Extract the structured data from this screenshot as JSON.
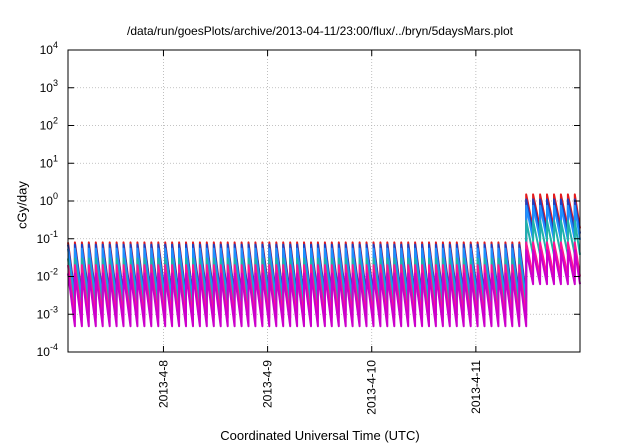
{
  "chart_data": {
    "type": "line",
    "title": "/data/run/goesPlots/archive/2013-04-11/23:00/flux/../bryn/5daysMars.plot",
    "xlabel": "Coordinated Universal Time (UTC)",
    "ylabel": "cGy/day",
    "y_scale": "log",
    "ylim": [
      0.0001,
      10000
    ],
    "xlim": [
      "2013-04-07 02:00",
      "2013-04-12 00:00"
    ],
    "x_ticks": [
      "2013-4-8",
      "2013-4-9",
      "2013-4-10",
      "2013-4-11"
    ],
    "y_ticks": [
      {
        "base": "10",
        "exp": "-4"
      },
      {
        "base": "10",
        "exp": "-3"
      },
      {
        "base": "10",
        "exp": "-2"
      },
      {
        "base": "10",
        "exp": "-1"
      },
      {
        "base": "10",
        "exp": "0"
      },
      {
        "base": "10",
        "exp": "1"
      },
      {
        "base": "10",
        "exp": "2"
      },
      {
        "base": "10",
        "exp": "3"
      },
      {
        "base": "10",
        "exp": "4"
      }
    ],
    "grid": true,
    "pattern": {
      "period_hours": 1.6,
      "start": "2013-04-07 02:00",
      "step_change": "2013-04-11 10:30",
      "peak_ratio_before": 25,
      "peak_ratio_after": 8
    },
    "series": [
      {
        "color": "#e41a1c",
        "peak_before": 0.08,
        "peak_after": 1.5
      },
      {
        "color": "#1f3fbf",
        "peak_before": 0.07,
        "peak_after": 1.1
      },
      {
        "color": "#1e90ff",
        "peak_before": 0.055,
        "peak_after": 0.75
      },
      {
        "color": "#20b2aa",
        "peak_before": 0.03,
        "peak_after": 0.3
      },
      {
        "color": "#ff1493",
        "peak_before": 0.02,
        "peak_after": 0.08
      },
      {
        "color": "#cc00cc",
        "peak_before": 0.012,
        "peak_after": 0.05
      }
    ]
  }
}
